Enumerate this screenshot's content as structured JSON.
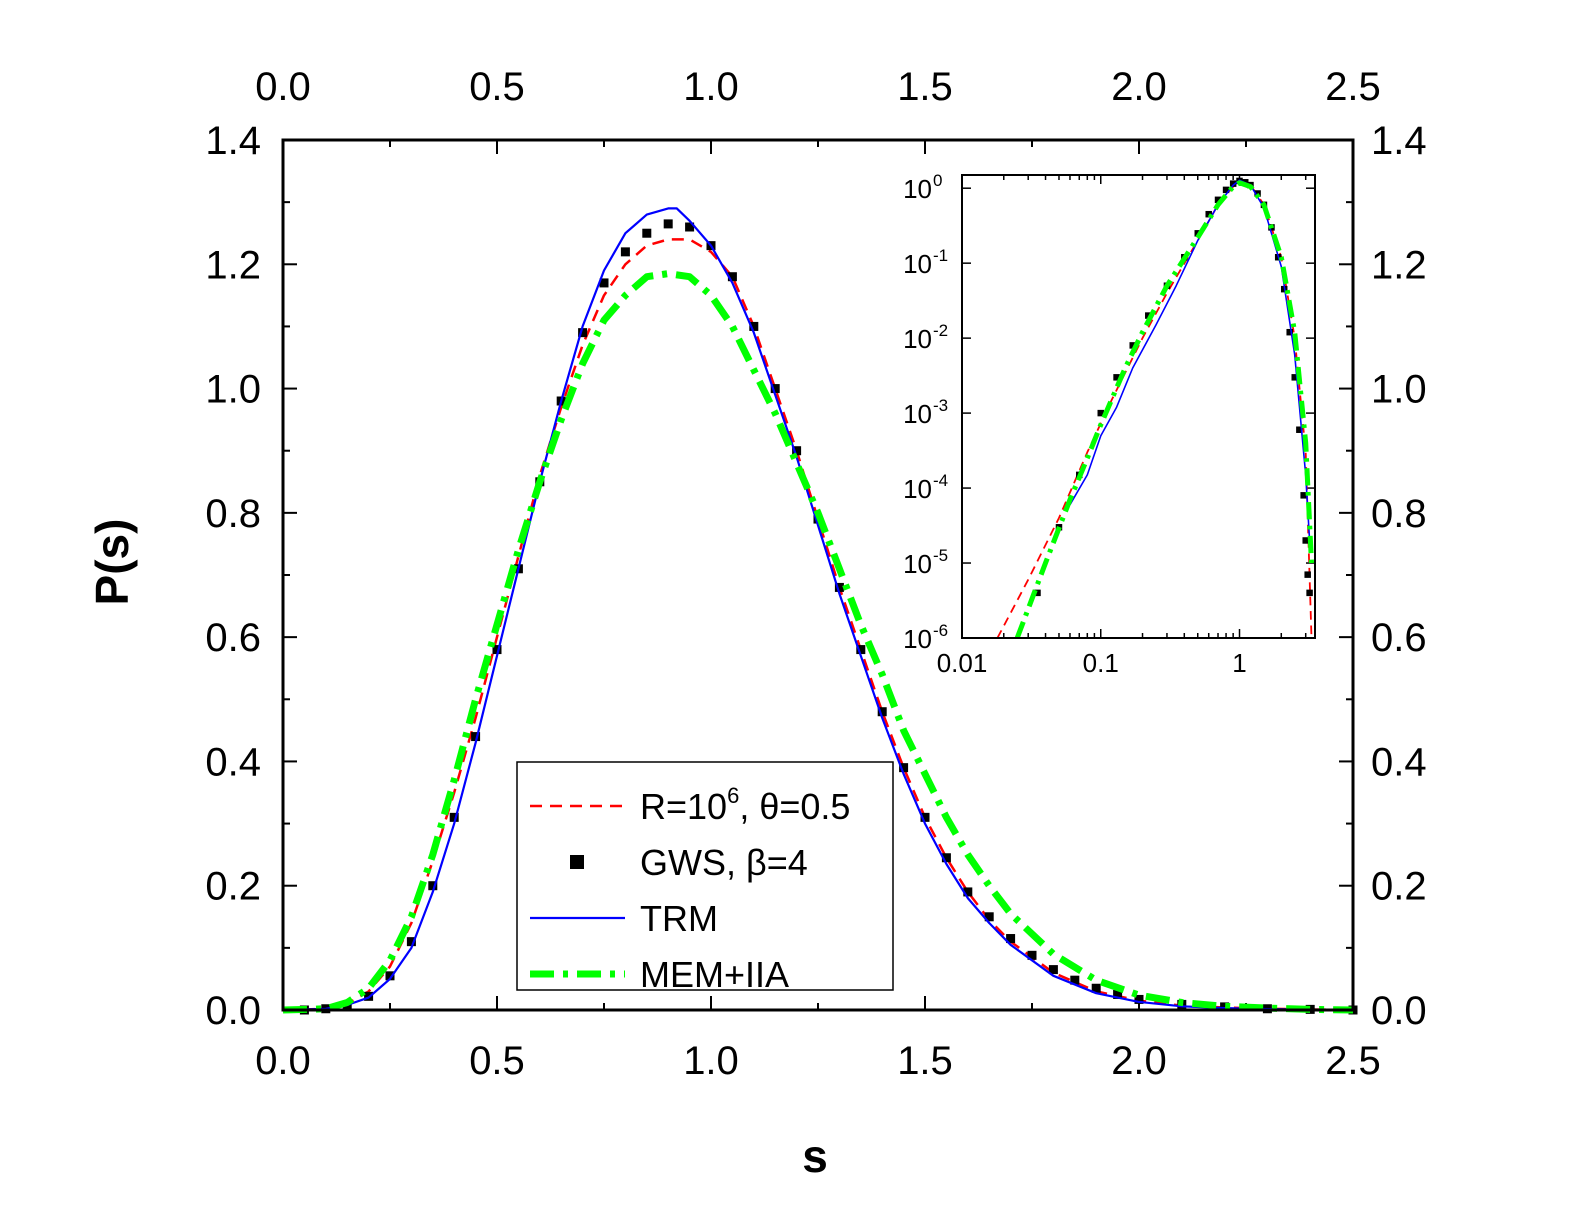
{
  "chart_data": [
    {
      "type": "line",
      "id": "main",
      "xlabel": "s",
      "ylabel": "P(s)",
      "xlim": [
        0,
        2.5
      ],
      "ylim": [
        0,
        1.4
      ],
      "xticks": [
        "0.0",
        "0.5",
        "1.0",
        "1.5",
        "2.0",
        "2.5"
      ],
      "yticks": [
        "0.0",
        "0.2",
        "0.4",
        "0.6",
        "0.8",
        "1.0",
        "1.2",
        "1.4"
      ],
      "x_minor_step": 0.25,
      "y_minor_step": 0.1,
      "legend": {
        "position": "bottom-center",
        "entries": [
          {
            "series": "red",
            "parts": [
              {
                "t": "R=10"
              },
              {
                "t": "6",
                "sup": true
              },
              {
                "t": ", θ=0.5"
              }
            ]
          },
          {
            "series": "gws",
            "parts": [
              {
                "t": "GWS, β=4"
              }
            ]
          },
          {
            "series": "trm",
            "parts": [
              {
                "t": "TRM"
              }
            ]
          },
          {
            "series": "mem",
            "parts": [
              {
                "t": "MEM+IIA"
              }
            ]
          }
        ]
      },
      "series": [
        {
          "key": "red",
          "name": "R=10^6, θ=0.5",
          "color": "#ff0000",
          "style": "dashed",
          "x": [
            0.0,
            0.1,
            0.15,
            0.2,
            0.25,
            0.3,
            0.35,
            0.4,
            0.45,
            0.5,
            0.55,
            0.6,
            0.65,
            0.7,
            0.75,
            0.8,
            0.85,
            0.9,
            0.95,
            1.0,
            1.05,
            1.1,
            1.15,
            1.2,
            1.25,
            1.3,
            1.35,
            1.4,
            1.45,
            1.5,
            1.55,
            1.6,
            1.65,
            1.7,
            1.8,
            1.9,
            2.0,
            2.1,
            2.2,
            2.3,
            2.4,
            2.5
          ],
          "y": [
            0.0,
            0.002,
            0.01,
            0.03,
            0.07,
            0.14,
            0.24,
            0.35,
            0.47,
            0.6,
            0.73,
            0.86,
            0.97,
            1.07,
            1.15,
            1.2,
            1.23,
            1.24,
            1.24,
            1.22,
            1.18,
            1.1,
            1.0,
            0.9,
            0.79,
            0.68,
            0.58,
            0.48,
            0.39,
            0.31,
            0.245,
            0.19,
            0.145,
            0.11,
            0.06,
            0.03,
            0.015,
            0.007,
            0.004,
            0.002,
            0.001,
            0.0
          ]
        },
        {
          "key": "gws",
          "name": "GWS, β=4",
          "color": "#000000",
          "style": "squares",
          "x": [
            0.05,
            0.1,
            0.15,
            0.2,
            0.25,
            0.3,
            0.35,
            0.4,
            0.45,
            0.5,
            0.55,
            0.6,
            0.65,
            0.7,
            0.75,
            0.8,
            0.85,
            0.9,
            0.95,
            1.0,
            1.05,
            1.1,
            1.15,
            1.2,
            1.25,
            1.3,
            1.35,
            1.4,
            1.45,
            1.5,
            1.55,
            1.6,
            1.65,
            1.7,
            1.75,
            1.8,
            1.85,
            1.9,
            1.95,
            2.0,
            2.1,
            2.2,
            2.3,
            2.4,
            2.5
          ],
          "y": [
            0.0,
            0.002,
            0.008,
            0.022,
            0.055,
            0.11,
            0.2,
            0.31,
            0.44,
            0.58,
            0.71,
            0.85,
            0.98,
            1.09,
            1.17,
            1.22,
            1.25,
            1.265,
            1.26,
            1.23,
            1.18,
            1.1,
            1.0,
            0.9,
            0.79,
            0.68,
            0.58,
            0.48,
            0.39,
            0.31,
            0.245,
            0.19,
            0.15,
            0.115,
            0.088,
            0.065,
            0.048,
            0.035,
            0.025,
            0.017,
            0.009,
            0.005,
            0.002,
            0.001,
            0.0
          ]
        },
        {
          "key": "trm",
          "name": "TRM",
          "color": "#0000ff",
          "style": "solid",
          "x": [
            0.0,
            0.1,
            0.15,
            0.2,
            0.25,
            0.3,
            0.35,
            0.4,
            0.45,
            0.5,
            0.55,
            0.6,
            0.65,
            0.7,
            0.75,
            0.8,
            0.85,
            0.9,
            0.92,
            0.95,
            1.0,
            1.05,
            1.1,
            1.15,
            1.2,
            1.25,
            1.3,
            1.35,
            1.4,
            1.45,
            1.5,
            1.55,
            1.6,
            1.65,
            1.7,
            1.8,
            1.9,
            2.0,
            2.1,
            2.2,
            2.3,
            2.4,
            2.5
          ],
          "y": [
            0.0,
            0.002,
            0.008,
            0.02,
            0.05,
            0.1,
            0.19,
            0.3,
            0.43,
            0.57,
            0.71,
            0.85,
            0.98,
            1.1,
            1.19,
            1.25,
            1.28,
            1.29,
            1.29,
            1.27,
            1.23,
            1.17,
            1.09,
            0.99,
            0.89,
            0.78,
            0.67,
            0.57,
            0.47,
            0.38,
            0.3,
            0.235,
            0.18,
            0.14,
            0.105,
            0.055,
            0.027,
            0.013,
            0.006,
            0.003,
            0.0015,
            0.0007,
            0.0
          ]
        },
        {
          "key": "mem",
          "name": "MEM+IIA",
          "color": "#00ff00",
          "style": "dashdot",
          "x": [
            0.0,
            0.1,
            0.15,
            0.2,
            0.25,
            0.3,
            0.35,
            0.4,
            0.45,
            0.5,
            0.55,
            0.6,
            0.65,
            0.7,
            0.75,
            0.8,
            0.85,
            0.9,
            0.95,
            1.0,
            1.05,
            1.1,
            1.15,
            1.2,
            1.25,
            1.3,
            1.35,
            1.4,
            1.45,
            1.5,
            1.55,
            1.6,
            1.65,
            1.7,
            1.8,
            1.9,
            2.0,
            2.1,
            2.2,
            2.3,
            2.4,
            2.5
          ],
          "y": [
            0.0,
            0.002,
            0.012,
            0.035,
            0.08,
            0.15,
            0.25,
            0.37,
            0.5,
            0.62,
            0.74,
            0.85,
            0.95,
            1.04,
            1.11,
            1.15,
            1.18,
            1.185,
            1.18,
            1.15,
            1.1,
            1.03,
            0.96,
            0.88,
            0.8,
            0.71,
            0.62,
            0.54,
            0.45,
            0.38,
            0.31,
            0.25,
            0.2,
            0.155,
            0.09,
            0.048,
            0.024,
            0.012,
            0.006,
            0.003,
            0.001,
            0.0
          ]
        }
      ]
    },
    {
      "type": "line",
      "id": "inset",
      "xscale": "log",
      "yscale": "log",
      "xlim": [
        0.01,
        3.5
      ],
      "ylim": [
        1e-06,
        1.5
      ],
      "xtick_labels": [
        {
          "v": 0.01,
          "t": "0.01"
        },
        {
          "v": 0.1,
          "t": "0.1"
        },
        {
          "v": 1,
          "t": "1"
        }
      ],
      "ytick_labels": [
        {
          "v": 1e-06,
          "base": "10",
          "exp": "-6"
        },
        {
          "v": 1e-05,
          "base": "10",
          "exp": "-5"
        },
        {
          "v": 0.0001,
          "base": "10",
          "exp": "-4"
        },
        {
          "v": 0.001,
          "base": "10",
          "exp": "-3"
        },
        {
          "v": 0.01,
          "base": "10",
          "exp": "-2"
        },
        {
          "v": 0.1,
          "base": "10",
          "exp": "-1"
        },
        {
          "v": 1,
          "base": "10",
          "exp": "0"
        }
      ],
      "series": [
        {
          "key": "red",
          "color": "#ff0000",
          "style": "dashed",
          "x": [
            0.018,
            0.03,
            0.05,
            0.08,
            0.12,
            0.2,
            0.3,
            0.5,
            0.7,
            0.9,
            1.0,
            1.2,
            1.5,
            2.0,
            2.5,
            3.0,
            3.3
          ],
          "y": [
            1e-06,
            6e-06,
            4e-05,
            0.0003,
            0.0015,
            0.01,
            0.04,
            0.2,
            0.6,
            1.05,
            1.24,
            1.1,
            0.6,
            0.12,
            0.01,
            0.0003,
            1e-06
          ]
        },
        {
          "key": "gws",
          "color": "#000000",
          "style": "squares",
          "x": [
            0.035,
            0.05,
            0.07,
            0.1,
            0.13,
            0.17,
            0.22,
            0.3,
            0.4,
            0.5,
            0.6,
            0.7,
            0.8,
            0.9,
            1.0,
            1.1,
            1.2,
            1.35,
            1.5,
            1.7,
            1.9,
            2.1,
            2.3,
            2.5,
            2.7,
            2.9,
            3.0,
            3.1,
            3.2
          ],
          "y": [
            4e-06,
            3e-05,
            0.00015,
            0.001,
            0.003,
            0.008,
            0.02,
            0.05,
            0.12,
            0.25,
            0.45,
            0.7,
            0.95,
            1.15,
            1.25,
            1.2,
            1.1,
            0.85,
            0.6,
            0.3,
            0.12,
            0.045,
            0.012,
            0.003,
            0.0006,
            8e-05,
            2e-05,
            7e-06,
            4e-06
          ]
        },
        {
          "key": "trm",
          "color": "#0000ff",
          "style": "solid",
          "x": [
            0.06,
            0.08,
            0.1,
            0.13,
            0.17,
            0.25,
            0.35,
            0.5,
            0.7,
            0.9,
            1.0,
            1.2,
            1.5,
            2.0,
            2.5,
            3.0,
            3.2
          ],
          "y": [
            6e-05,
            0.00015,
            0.0005,
            0.0012,
            0.004,
            0.015,
            0.05,
            0.2,
            0.6,
            1.1,
            1.28,
            1.1,
            0.55,
            0.09,
            0.006,
            0.00015,
            2e-05
          ]
        },
        {
          "key": "mem",
          "color": "#00ff00",
          "style": "dashdot",
          "x": [
            0.025,
            0.04,
            0.06,
            0.08,
            0.1,
            0.15,
            0.2,
            0.3,
            0.5,
            0.7,
            0.9,
            1.0,
            1.2,
            1.5,
            2.0,
            2.5,
            3.0,
            3.3
          ],
          "y": [
            1e-06,
            1e-05,
            7e-05,
            0.00025,
            0.0007,
            0.004,
            0.012,
            0.05,
            0.22,
            0.6,
            1.05,
            1.18,
            1.05,
            0.6,
            0.12,
            0.012,
            0.0004,
            1e-05
          ]
        }
      ]
    }
  ]
}
